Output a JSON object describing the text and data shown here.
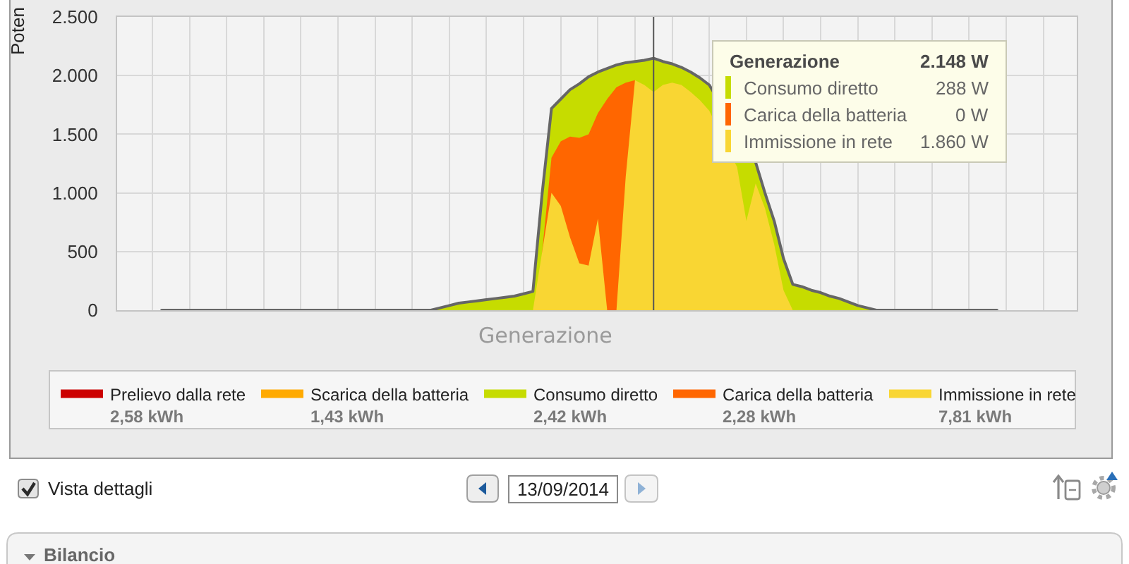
{
  "chart_data": {
    "type": "area",
    "stacked": true,
    "xlabel": "Generazione",
    "ylabel": "Poten",
    "categories": [
      null,
      null,
      null,
      null,
      null,
      null,
      null,
      null,
      null,
      null,
      null,
      null,
      null,
      null,
      null,
      null,
      null,
      null,
      null,
      null,
      null,
      null,
      null,
      null,
      null,
      null,
      null,
      null,
      null,
      null,
      null,
      null,
      null,
      null,
      null,
      null,
      null,
      null,
      null,
      null,
      null,
      null,
      null,
      null,
      null,
      null,
      null,
      null,
      null,
      null,
      null,
      null,
      null,
      null,
      null,
      null,
      null,
      null,
      null,
      null,
      null,
      null,
      null,
      null,
      null,
      null,
      null,
      null,
      null,
      null,
      null,
      null,
      null,
      null,
      null,
      null,
      null,
      null,
      null,
      null,
      null,
      null,
      null,
      null,
      null,
      null,
      null,
      null,
      null,
      null,
      null
    ],
    "ylim": [
      0,
      2500
    ],
    "yticks": [
      0,
      500,
      {
        "value": 1000,
        "label": "1.000"
      },
      {
        "value": 1500,
        "label": "1.500"
      },
      {
        "value": 2000,
        "label": "2.000"
      },
      {
        "value": 2500,
        "label": "2.500"
      }
    ],
    "grid": true,
    "legend": "bottom",
    "tick_labels": "y",
    "series": [
      {
        "name": "Immissione in rete",
        "color": "#f9d633",
        "values": [
          null,
          null,
          null,
          null,
          null,
          null,
          null,
          null,
          null,
          null,
          null,
          null,
          null,
          null,
          null,
          null,
          null,
          null,
          null,
          null,
          null,
          null,
          null,
          null,
          null,
          null,
          null,
          null,
          null,
          null,
          null,
          null,
          null,
          null,
          null,
          null,
          null,
          null,
          null,
          null,
          0,
          500,
          1000,
          890,
          620,
          400,
          380,
          780,
          0,
          0,
          1140,
          1960,
          1920,
          1860,
          1920,
          1940,
          1920,
          1860,
          1790,
          1700,
          null,
          null,
          1220,
          760,
          1080,
          870,
          560,
          170,
          0,
          null,
          null,
          null,
          null,
          null,
          null,
          null,
          null,
          null,
          null,
          null,
          null,
          null,
          null,
          null,
          null,
          null,
          null,
          null,
          null,
          null,
          null
        ]
      },
      {
        "name": "Carica della batteria",
        "color": "#ff6600",
        "values": [
          null,
          null,
          null,
          null,
          null,
          null,
          null,
          null,
          null,
          null,
          null,
          null,
          null,
          null,
          null,
          null,
          null,
          null,
          null,
          null,
          null,
          null,
          null,
          null,
          null,
          null,
          null,
          null,
          null,
          null,
          null,
          null,
          null,
          null,
          null,
          null,
          null,
          null,
          null,
          null,
          null,
          0,
          300,
          550,
          860,
          1070,
          1120,
          900,
          1800,
          1900,
          800,
          0,
          null,
          null,
          null,
          null,
          null,
          null,
          null,
          null,
          null,
          null,
          null,
          null,
          null,
          null,
          null,
          null,
          null,
          null,
          null,
          null,
          null,
          null,
          null,
          null,
          null,
          null,
          null,
          null,
          null,
          null,
          null,
          null,
          null,
          null,
          null,
          null,
          null,
          null,
          null
        ]
      },
      {
        "name": "Consumo diretto",
        "color": "#c6dc00",
        "values": [
          null,
          null,
          null,
          null,
          null,
          null,
          null,
          null,
          null,
          null,
          null,
          null,
          null,
          null,
          null,
          null,
          null,
          null,
          null,
          null,
          null,
          null,
          null,
          null,
          null,
          null,
          null,
          null,
          null,
          0,
          20,
          40,
          60,
          70,
          80,
          90,
          100,
          110,
          120,
          140,
          160,
          500,
          420,
          360,
          400,
          460,
          490,
          350,
          260,
          190,
          170,
          160,
          210,
          288,
          200,
          160,
          150,
          170,
          190,
          220,
          null,
          null,
          null,
          null,
          180,
          130,
          200,
          270,
          220,
          200,
          170,
          150,
          120,
          100,
          70,
          40,
          20,
          0,
          null,
          null,
          null,
          null,
          null,
          null,
          null,
          null,
          null,
          null,
          null,
          null,
          null
        ]
      },
      {
        "type": "line",
        "color": "#666666",
        "values": [
          0,
          0,
          0,
          0,
          0,
          0,
          0,
          0,
          0,
          0,
          0,
          0,
          0,
          0,
          0,
          0,
          0,
          0,
          0,
          0,
          0,
          0,
          0,
          0,
          0,
          0,
          0,
          0,
          0,
          0,
          20,
          40,
          60,
          70,
          80,
          90,
          100,
          110,
          120,
          140,
          160,
          1000,
          1720,
          1800,
          1880,
          1930,
          1990,
          2030,
          2060,
          2090,
          2110,
          2120,
          2130,
          2148,
          2120,
          2100,
          2070,
          2030,
          1980,
          1920,
          null,
          null,
          null,
          null,
          1260,
          1000,
          760,
          440,
          220,
          200,
          170,
          150,
          120,
          100,
          70,
          40,
          20,
          0,
          0,
          0,
          0,
          0,
          0,
          0,
          0,
          0,
          0,
          0,
          0,
          0,
          0
        ]
      },
      {
        "name": "Scarica della batteria",
        "color": "#ffaa00",
        "values": [
          null,
          null,
          null,
          null,
          null,
          null,
          null,
          null,
          null,
          null,
          null,
          null,
          null,
          null,
          null,
          null,
          null,
          null,
          null,
          null,
          null,
          null,
          null,
          null,
          null,
          null,
          null,
          null,
          null,
          null,
          null,
          null,
          null,
          null,
          null,
          null,
          null,
          null,
          null,
          null,
          null,
          null,
          null,
          null,
          null,
          null,
          null,
          null,
          null,
          null,
          null,
          null,
          null,
          null,
          null,
          null,
          null,
          null,
          null,
          null,
          null,
          null,
          null,
          null,
          null,
          null,
          null,
          null,
          null,
          null,
          null,
          null,
          null,
          null,
          null,
          null,
          null,
          null,
          null,
          null,
          null,
          null,
          null,
          null,
          null,
          null,
          null,
          null,
          null,
          null,
          null
        ]
      },
      {
        "name": "Prelievo dalla rete",
        "color": "#cc0000",
        "values": [
          null,
          null,
          null,
          null,
          null,
          null,
          null,
          null,
          null,
          null,
          null,
          null,
          null,
          null,
          null,
          null,
          null,
          null,
          null,
          null,
          null,
          null,
          null,
          null,
          null,
          null,
          null,
          null,
          null,
          null,
          null,
          null,
          null,
          null,
          null,
          null,
          null,
          null,
          null,
          null,
          null,
          null,
          null,
          null,
          null,
          null,
          null,
          null,
          null,
          null,
          null,
          null,
          null,
          null,
          null,
          null,
          null,
          null,
          null,
          null,
          null,
          null,
          null,
          null,
          null,
          null,
          null,
          null,
          null,
          null,
          null,
          null,
          null,
          null,
          null,
          null,
          null,
          null,
          null,
          null,
          null,
          null,
          null,
          null,
          null,
          null,
          null,
          null,
          null,
          null,
          null
        ]
      }
    ],
    "annotations": [
      "Generazione",
      "2.148 W",
      "Consumo diretto",
      "288 W",
      "Carica della batteria",
      "0 W",
      "Immissione in rete",
      "1.860 W",
      "2,58 kWh",
      "1,43 kWh",
      "2,42 kWh",
      "2,28 kWh",
      "7,81 kWh",
      "Vista dettagli",
      "13/09/2014",
      "Bilancio"
    ]
  }
}
